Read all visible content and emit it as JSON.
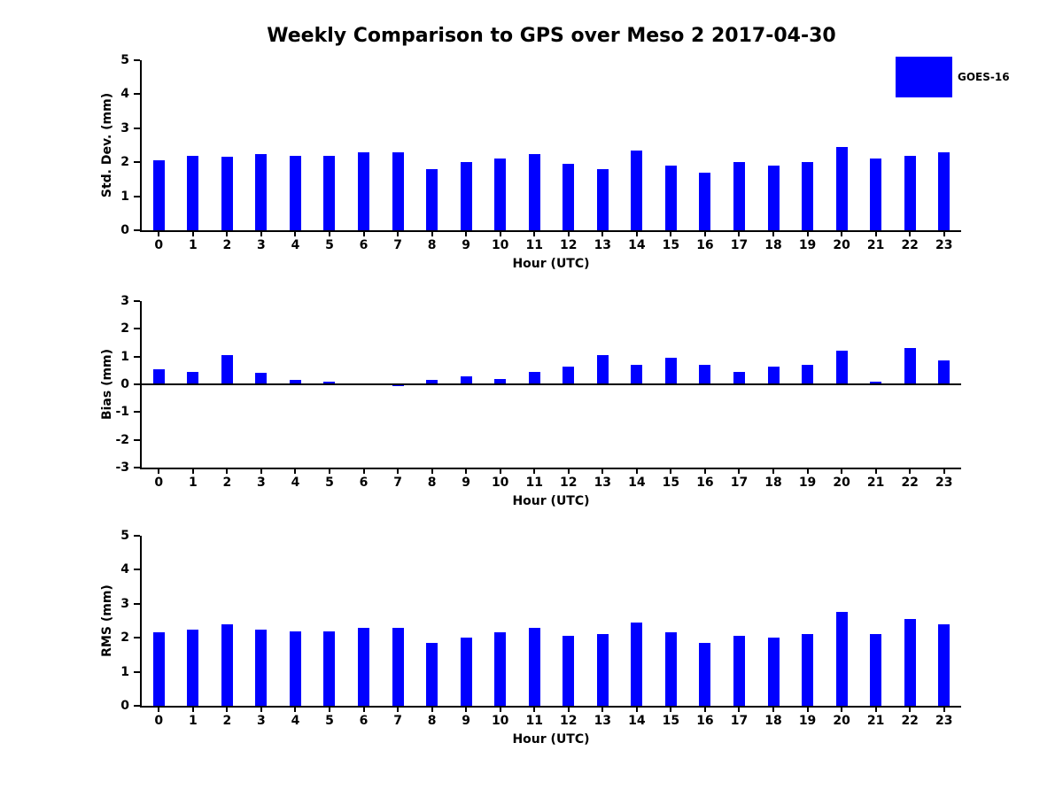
{
  "title": "Weekly Comparison to GPS over Meso 2 2017-04-30",
  "legend": {
    "label": "GOES-16",
    "color": "#0000ff"
  },
  "chart_data": [
    {
      "type": "bar",
      "title": "",
      "ylabel": "Std. Dev. (mm)",
      "xlabel": "Hour (UTC)",
      "categories": [
        "0",
        "1",
        "2",
        "3",
        "4",
        "5",
        "6",
        "7",
        "8",
        "9",
        "10",
        "11",
        "12",
        "13",
        "14",
        "15",
        "16",
        "17",
        "18",
        "19",
        "20",
        "21",
        "22",
        "23"
      ],
      "values": [
        2.05,
        2.2,
        2.15,
        2.25,
        2.2,
        2.2,
        2.3,
        2.3,
        1.8,
        2.0,
        2.1,
        2.25,
        1.95,
        1.8,
        2.35,
        1.9,
        1.7,
        2.0,
        1.9,
        2.0,
        2.45,
        2.1,
        2.2,
        2.3
      ],
      "ylim": [
        0,
        5
      ],
      "yticks": [
        0,
        1,
        2,
        3,
        4,
        5
      ],
      "bar_color": "#0000ff",
      "grid": false,
      "legend_entries": [
        "GOES-16"
      ],
      "legend_position": "top-right"
    },
    {
      "type": "bar",
      "title": "",
      "ylabel": "Bias (mm)",
      "xlabel": "Hour (UTC)",
      "categories": [
        "0",
        "1",
        "2",
        "3",
        "4",
        "5",
        "6",
        "7",
        "8",
        "9",
        "10",
        "11",
        "12",
        "13",
        "14",
        "15",
        "16",
        "17",
        "18",
        "19",
        "20",
        "21",
        "22",
        "23"
      ],
      "values": [
        0.55,
        0.45,
        1.05,
        0.4,
        0.15,
        0.1,
        0.0,
        -0.05,
        0.15,
        0.3,
        0.2,
        0.45,
        0.65,
        1.05,
        0.7,
        0.95,
        0.7,
        0.45,
        0.65,
        0.7,
        1.2,
        0.1,
        1.3,
        0.85
      ],
      "ylim": [
        -3,
        3
      ],
      "yticks": [
        -3,
        -2,
        -1,
        0,
        1,
        2,
        3
      ],
      "bar_color": "#0000ff",
      "grid": false
    },
    {
      "type": "bar",
      "title": "",
      "ylabel": "RMS (mm)",
      "xlabel": "Hour (UTC)",
      "categories": [
        "0",
        "1",
        "2",
        "3",
        "4",
        "5",
        "6",
        "7",
        "8",
        "9",
        "10",
        "11",
        "12",
        "13",
        "14",
        "15",
        "16",
        "17",
        "18",
        "19",
        "20",
        "21",
        "22",
        "23"
      ],
      "values": [
        2.15,
        2.25,
        2.4,
        2.25,
        2.2,
        2.2,
        2.3,
        2.3,
        1.85,
        2.0,
        2.15,
        2.3,
        2.05,
        2.1,
        2.45,
        2.15,
        1.85,
        2.05,
        2.0,
        2.1,
        2.75,
        2.1,
        2.55,
        2.4
      ],
      "ylim": [
        0,
        5
      ],
      "yticks": [
        0,
        1,
        2,
        3,
        4,
        5
      ],
      "bar_color": "#0000ff",
      "grid": false
    }
  ]
}
